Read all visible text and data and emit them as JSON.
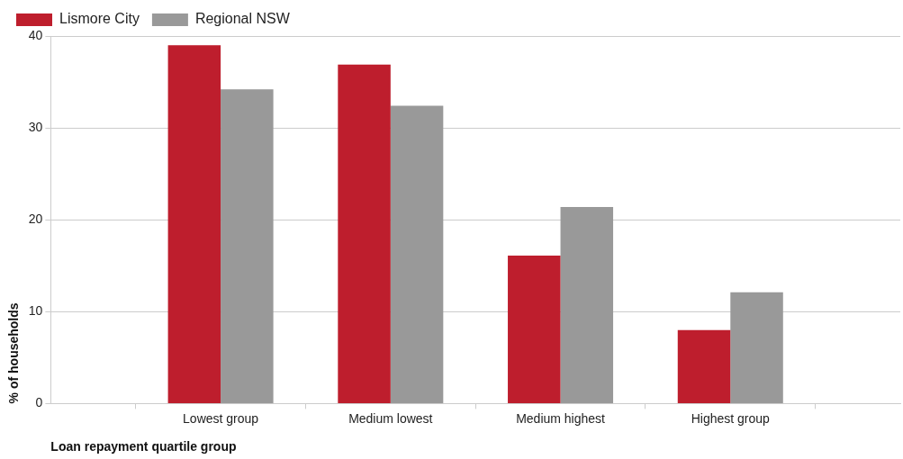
{
  "chart_data": {
    "type": "bar",
    "xlabel": "Loan repayment quartile group",
    "ylabel": "% of households",
    "categories": [
      null,
      "Lowest group",
      "Medium lowest",
      "Medium highest",
      "Highest group",
      null
    ],
    "series": [
      {
        "name": "Lismore City",
        "color": "#be1e2d",
        "values": [
          null,
          39.0,
          36.9,
          16.1,
          8.0,
          null
        ]
      },
      {
        "name": "Regional NSW",
        "color": "#999999",
        "values": [
          null,
          34.2,
          32.4,
          21.4,
          12.1,
          null
        ]
      }
    ],
    "ylim": [
      0,
      40
    ],
    "yticks": [
      0,
      10,
      20,
      30,
      40
    ],
    "grid": "y",
    "legend": "top left"
  }
}
